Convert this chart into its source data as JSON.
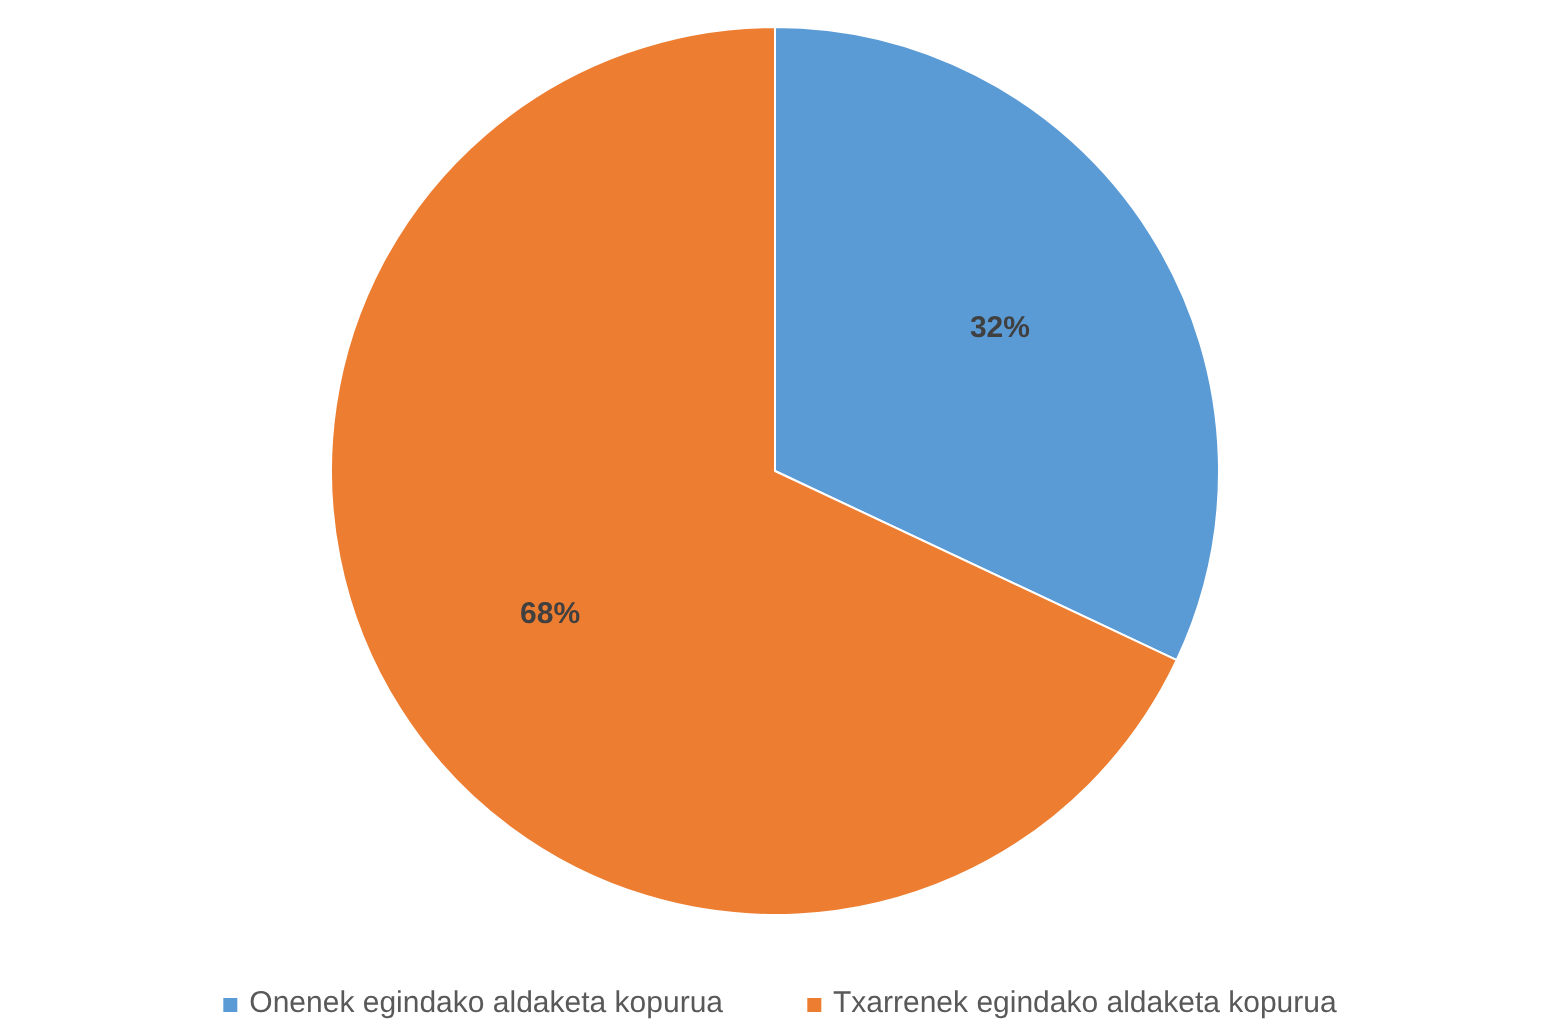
{
  "chart_data": {
    "type": "pie",
    "categories": [
      "Onenek egindako aldaketa kopurua",
      "Txarrenek egindako aldaketa kopurua"
    ],
    "values": [
      32,
      68
    ],
    "colors": [
      "#5b9bd5",
      "#ed7d31"
    ],
    "value_labels": [
      "32%",
      "68%"
    ],
    "legend": "bottom"
  }
}
